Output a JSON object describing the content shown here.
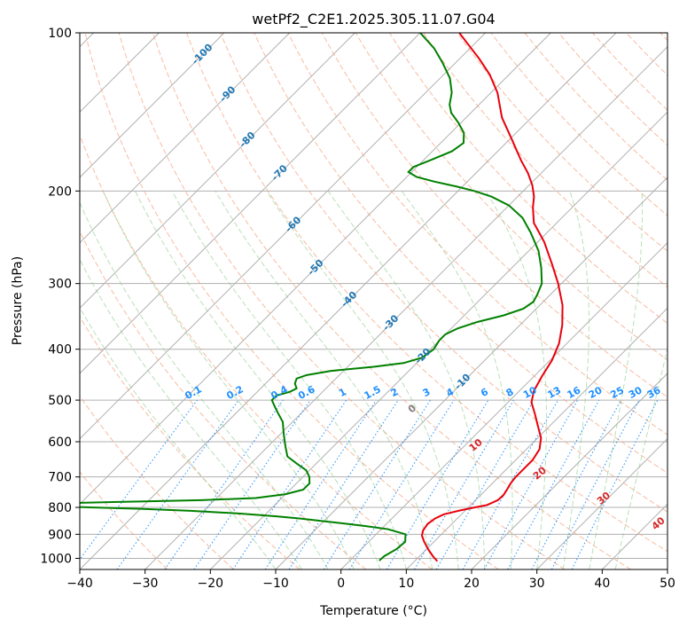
{
  "chart_data": {
    "type": "line",
    "title": "wetPf2_C2E1.2025.305.11.07.G04",
    "xlabel": "Temperature (°C)",
    "ylabel": "Pressure (hPa)",
    "xlim": [
      -40,
      50
    ],
    "ylim": [
      1050,
      100
    ],
    "y_scale": "log",
    "skew": true,
    "grid": true,
    "x_ticks": [
      "−40",
      "−30",
      "−20",
      "−10",
      "0",
      "10",
      "20",
      "30",
      "40",
      "50"
    ],
    "y_ticks": [
      "100",
      "200",
      "300",
      "400",
      "500",
      "600",
      "700",
      "800",
      "900",
      "1000"
    ],
    "colors": {
      "temperature": "#e8000b",
      "dewpoint": "#008000",
      "isotherm_labels": "#1f77b4",
      "mixing_ratio": "#1e90ff",
      "moist_adiabat_labels": "#d62728",
      "zero_label": "#808080"
    },
    "series": [
      {
        "points": [
          {
            "p": 1013,
            "t": 13.5
          },
          {
            "p": 990,
            "t": 12
          },
          {
            "p": 960,
            "t": 10.2
          },
          {
            "p": 930,
            "t": 8.5
          },
          {
            "p": 905,
            "t": 7.2
          },
          {
            "p": 885,
            "t": 6.6
          },
          {
            "p": 860,
            "t": 6.3
          },
          {
            "p": 840,
            "t": 6.6
          },
          {
            "p": 825,
            "t": 7.3
          },
          {
            "p": 812,
            "t": 9
          },
          {
            "p": 800,
            "t": 11
          },
          {
            "p": 792,
            "t": 12.5
          },
          {
            "p": 775,
            "t": 13.4
          },
          {
            "p": 758,
            "t": 13.5
          },
          {
            "p": 740,
            "t": 13.2
          },
          {
            "p": 720,
            "t": 12.8
          },
          {
            "p": 700,
            "t": 12.6
          },
          {
            "p": 680,
            "t": 12.6
          },
          {
            "p": 650,
            "t": 12.6
          },
          {
            "p": 620,
            "t": 12
          },
          {
            "p": 590,
            "t": 10.5
          },
          {
            "p": 560,
            "t": 8.2
          },
          {
            "p": 530,
            "t": 5.8
          },
          {
            "p": 505,
            "t": 3.6
          },
          {
            "p": 480,
            "t": 2.2
          },
          {
            "p": 450,
            "t": 1.2
          },
          {
            "p": 420,
            "t": 0.3
          },
          {
            "p": 390,
            "t": -1.2
          },
          {
            "p": 360,
            "t": -3.5
          },
          {
            "p": 330,
            "t": -6.5
          },
          {
            "p": 300,
            "t": -10.5
          },
          {
            "p": 275,
            "t": -14.5
          },
          {
            "p": 250,
            "t": -19
          },
          {
            "p": 230,
            "t": -23.5
          },
          {
            "p": 215,
            "t": -26
          },
          {
            "p": 205,
            "t": -27.5
          },
          {
            "p": 195,
            "t": -29.5
          },
          {
            "p": 185,
            "t": -32
          },
          {
            "p": 175,
            "t": -35
          },
          {
            "p": 160,
            "t": -39.5
          },
          {
            "p": 145,
            "t": -44.5
          },
          {
            "p": 130,
            "t": -49
          },
          {
            "p": 120,
            "t": -53
          },
          {
            "p": 112,
            "t": -57
          },
          {
            "p": 105,
            "t": -61
          },
          {
            "p": 100,
            "t": -64
          }
        ]
      },
      {
        "points": [
          {
            "p": 1010,
            "t": 4.5
          },
          {
            "p": 990,
            "t": 4.6
          },
          {
            "p": 960,
            "t": 5.4
          },
          {
            "p": 930,
            "t": 5.6
          },
          {
            "p": 900,
            "t": 4.5
          },
          {
            "p": 880,
            "t": 1
          },
          {
            "p": 868,
            "t": -3
          },
          {
            "p": 860,
            "t": -6
          },
          {
            "p": 850,
            "t": -10
          },
          {
            "p": 840,
            "t": -14
          },
          {
            "p": 832,
            "t": -18
          },
          {
            "p": 822,
            "t": -24
          },
          {
            "p": 812,
            "t": -32
          },
          {
            "p": 805,
            "t": -40
          },
          {
            "p": 800,
            "t": -48
          },
          {
            "p": 795,
            "t": -55
          },
          {
            "p": 785,
            "t": -52
          },
          {
            "p": 780,
            "t": -42
          },
          {
            "p": 775,
            "t": -32
          },
          {
            "p": 768,
            "t": -24
          },
          {
            "p": 755,
            "t": -20
          },
          {
            "p": 740,
            "t": -18
          },
          {
            "p": 720,
            "t": -18
          },
          {
            "p": 700,
            "t": -19
          },
          {
            "p": 680,
            "t": -20.5
          },
          {
            "p": 660,
            "t": -23
          },
          {
            "p": 640,
            "t": -25.5
          },
          {
            "p": 610,
            "t": -27.5
          },
          {
            "p": 580,
            "t": -29.5
          },
          {
            "p": 550,
            "t": -31.5
          },
          {
            "p": 530,
            "t": -33.5
          },
          {
            "p": 515,
            "t": -35
          },
          {
            "p": 500,
            "t": -36.5
          },
          {
            "p": 490,
            "t": -36.5
          },
          {
            "p": 482,
            "t": -35
          },
          {
            "p": 475,
            "t": -34.5
          },
          {
            "p": 465,
            "t": -35.5
          },
          {
            "p": 455,
            "t": -36
          },
          {
            "p": 448,
            "t": -35
          },
          {
            "p": 440,
            "t": -32
          },
          {
            "p": 432,
            "t": -26
          },
          {
            "p": 425,
            "t": -22
          },
          {
            "p": 415,
            "t": -20
          },
          {
            "p": 400,
            "t": -19.5
          },
          {
            "p": 385,
            "t": -20
          },
          {
            "p": 375,
            "t": -20
          },
          {
            "p": 365,
            "t": -19
          },
          {
            "p": 355,
            "t": -17
          },
          {
            "p": 345,
            "t": -14
          },
          {
            "p": 335,
            "t": -12
          },
          {
            "p": 325,
            "t": -11.5
          },
          {
            "p": 315,
            "t": -12
          },
          {
            "p": 300,
            "t": -13
          },
          {
            "p": 280,
            "t": -15.5
          },
          {
            "p": 260,
            "t": -18.5
          },
          {
            "p": 240,
            "t": -22.5
          },
          {
            "p": 225,
            "t": -26
          },
          {
            "p": 213,
            "t": -30
          },
          {
            "p": 205,
            "t": -34
          },
          {
            "p": 200,
            "t": -37.5
          },
          {
            "p": 196,
            "t": -41
          },
          {
            "p": 192,
            "t": -45
          },
          {
            "p": 188,
            "t": -48.5
          },
          {
            "p": 184,
            "t": -50.5
          },
          {
            "p": 180,
            "t": -50.5
          },
          {
            "p": 175,
            "t": -49
          },
          {
            "p": 168,
            "t": -47
          },
          {
            "p": 162,
            "t": -46.5
          },
          {
            "p": 155,
            "t": -48
          },
          {
            "p": 148,
            "t": -50.5
          },
          {
            "p": 142,
            "t": -53
          },
          {
            "p": 137,
            "t": -54.5
          },
          {
            "p": 130,
            "t": -56
          },
          {
            "p": 122,
            "t": -58.5
          },
          {
            "p": 114,
            "t": -62
          },
          {
            "p": 107,
            "t": -65.5
          },
          {
            "p": 100,
            "t": -70
          }
        ]
      }
    ],
    "isotherm_labels": [
      "-100",
      "-90",
      "-80",
      "-70",
      "-60",
      "-50",
      "-40",
      "-30",
      "-20",
      "-10"
    ],
    "isotherm_label_values": [
      -100,
      -90,
      -80,
      -70,
      -60,
      -50,
      -40,
      -30,
      -20,
      -10
    ],
    "isotherm_label_pressures": [
      110,
      131,
      160,
      185,
      232,
      280,
      322,
      357,
      413,
      462
    ],
    "mixing_ratio_labels": [
      "0.1",
      "0.2",
      "0.4",
      "0.6",
      "1",
      "1.5",
      "2",
      "3",
      "4",
      "6",
      "8",
      "10",
      "13",
      "16",
      "20",
      "25",
      "30",
      "36"
    ],
    "mixing_ratio_values": [
      0.1,
      0.2,
      0.4,
      0.6,
      1,
      1.5,
      2,
      3,
      4,
      6,
      8,
      10,
      13,
      16,
      20,
      25,
      30,
      36
    ],
    "moist_adiabat_labels": [
      "0",
      "10",
      "20",
      "30",
      "40"
    ],
    "moist_adiabat_values": [
      0,
      10,
      20,
      30,
      40
    ],
    "moist_adiabat_label_pressures": [
      520,
      610,
      690,
      770,
      860
    ]
  }
}
